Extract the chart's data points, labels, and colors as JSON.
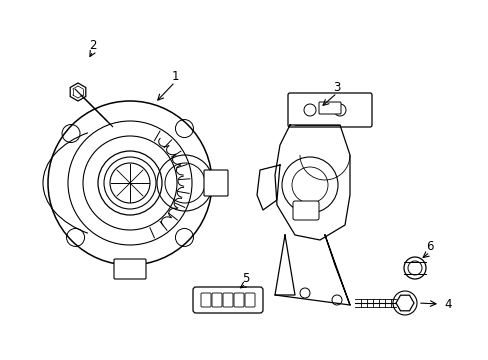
{
  "background_color": "#ffffff",
  "line_color": "#000000",
  "label_color": "#000000",
  "figsize": [
    4.89,
    3.6
  ],
  "dpi": 100,
  "label_fontsize": 8.5
}
